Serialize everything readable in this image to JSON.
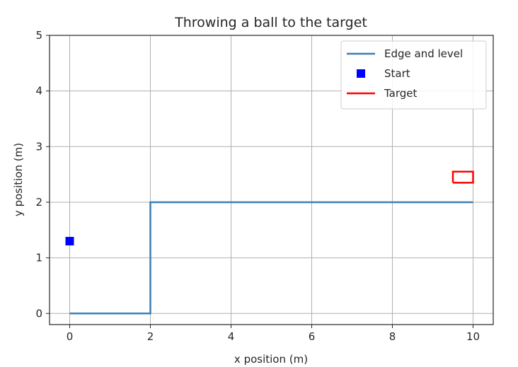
{
  "chart_data": {
    "type": "line",
    "title": "Throwing a ball to the target",
    "xlabel": "x position (m)",
    "ylabel": "y position (m)",
    "xlim": [
      -0.5,
      10.5
    ],
    "ylim": [
      -0.2,
      5
    ],
    "xticks": [
      0,
      2,
      4,
      6,
      8,
      10
    ],
    "yticks": [
      0,
      1,
      2,
      3,
      4,
      5
    ],
    "xtick_labels": [
      "0",
      "2",
      "4",
      "6",
      "8",
      "10"
    ],
    "ytick_labels": [
      "0",
      "1",
      "2",
      "3",
      "4",
      "5"
    ],
    "grid": true,
    "legend_position": "top-right",
    "series": [
      {
        "name": "Edge and level",
        "kind": "line",
        "color": "#3b7fb8",
        "x": [
          0,
          2,
          2,
          10
        ],
        "y": [
          0,
          0,
          2,
          2
        ]
      },
      {
        "name": "Start",
        "kind": "marker",
        "marker": "square",
        "color": "#0000ff",
        "x": [
          0
        ],
        "y": [
          1.3
        ]
      },
      {
        "name": "Target",
        "kind": "line",
        "color": "#ff0000",
        "x": [
          9.5,
          10,
          10,
          9.5,
          9.5
        ],
        "y": [
          2.35,
          2.35,
          2.55,
          2.55,
          2.35
        ]
      }
    ]
  }
}
